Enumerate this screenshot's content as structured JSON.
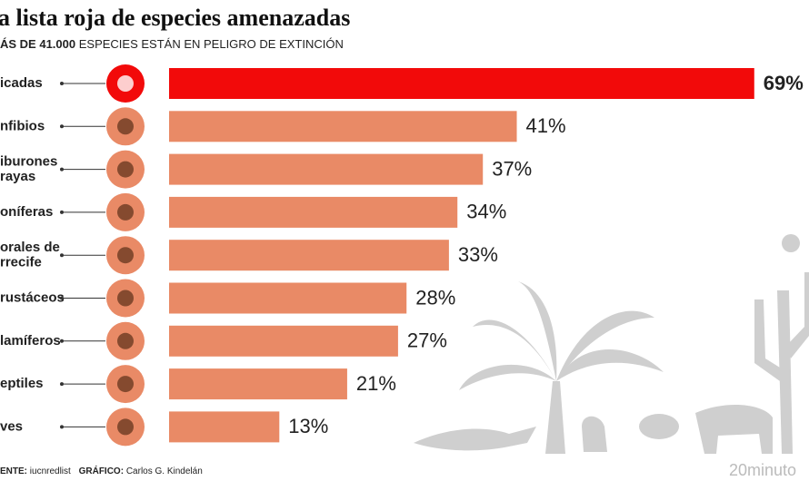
{
  "chart_data": {
    "type": "bar",
    "title": "a lista roja de especies amenazadas",
    "subtitle_bold": "ÁS DE 41.000",
    "subtitle": "ESPECIES ESTÁN EN PELIGRO DE EXTINCIÓN",
    "categories": [
      "icadas",
      "nfibios",
      "iburones\nrayas",
      "oníferas",
      "orales de\nrrecife",
      "rustáceos",
      "lamíferos",
      "eptiles",
      "ves"
    ],
    "values": [
      69,
      41,
      37,
      34,
      33,
      28,
      27,
      21,
      13
    ],
    "value_labels": [
      "69%",
      "41%",
      "37%",
      "34%",
      "33%",
      "28%",
      "27%",
      "21%",
      "13%"
    ],
    "colors": [
      "#f20a0a",
      "#e98a66",
      "#e98a66",
      "#e98a66",
      "#e98a66",
      "#e98a66",
      "#e98a66",
      "#e98a66",
      "#e98a66"
    ],
    "source_label": "ENTE:",
    "source": "iucnredlist",
    "credit_label": "GRÁFICO:",
    "credit": "Carlos G. Kindelán",
    "logo": "20minuto"
  }
}
